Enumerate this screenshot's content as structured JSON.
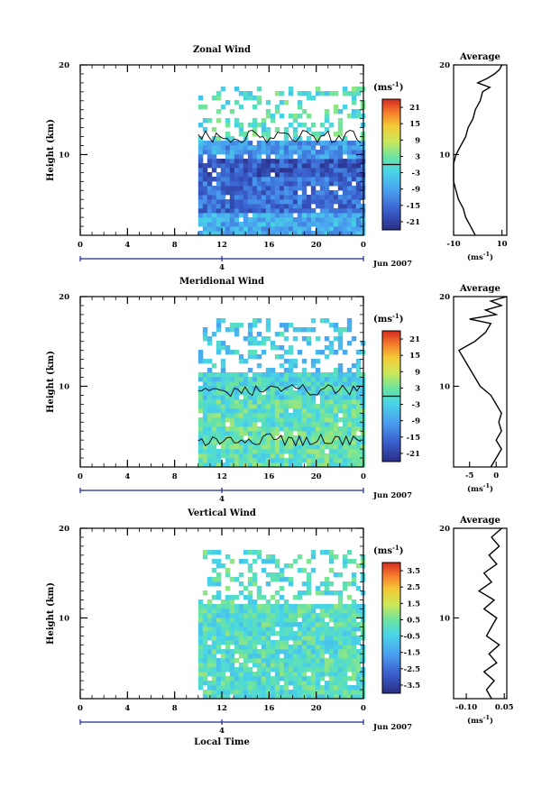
{
  "panels": [
    {
      "id": "zonal",
      "title": "Zonal Wind",
      "ylabel": "Height (km)",
      "y_ticks": [
        "20",
        "10"
      ],
      "x_ticks": [
        "0",
        "4",
        "8",
        "12",
        "16",
        "20",
        "0"
      ],
      "day_marker": "4",
      "date_label": "Jun 2007",
      "colorbar_unit": "(ms",
      "colorbar_exp": "-1",
      "colorbar_ticks": [
        "21",
        "15",
        "9",
        "3",
        "-3",
        "-9",
        "-15",
        "-21"
      ],
      "profile_title": "Average",
      "profile_yticks": [
        "20",
        "10"
      ],
      "profile_xticks": [
        "-10",
        "10"
      ],
      "profile_xlabel": "(ms",
      "profile_xlabel_exp": "-1"
    },
    {
      "id": "meridional",
      "title": "Meridional Wind",
      "ylabel": "Height (km)",
      "y_ticks": [
        "20",
        "10"
      ],
      "x_ticks": [
        "0",
        "4",
        "8",
        "12",
        "16",
        "20",
        "0"
      ],
      "day_marker": "4",
      "date_label": "Jun 2007",
      "colorbar_unit": "(ms",
      "colorbar_exp": "-1",
      "colorbar_ticks": [
        "21",
        "15",
        "9",
        "3",
        "-3",
        "-9",
        "-15",
        "-21"
      ],
      "profile_title": "Average",
      "profile_yticks": [
        "20",
        "10"
      ],
      "profile_xticks": [
        "-5",
        "0"
      ],
      "profile_xlabel": "(ms",
      "profile_xlabel_exp": "-1"
    },
    {
      "id": "vertical",
      "title": "Vertical Wind",
      "ylabel": "Height (km)",
      "y_ticks": [
        "20",
        "10"
      ],
      "x_ticks": [
        "0",
        "4",
        "8",
        "12",
        "16",
        "20",
        "0"
      ],
      "day_marker": "4",
      "date_label": "Jun 2007",
      "xlabel": "Local Time",
      "colorbar_unit": "(ms",
      "colorbar_exp": "-1",
      "colorbar_ticks": [
        "3.5",
        "2.5",
        "1.5",
        "0.5",
        "-0.5",
        "-1.5",
        "-2.5",
        "-3.5"
      ],
      "profile_title": "Average",
      "profile_yticks": [
        "20",
        "10"
      ],
      "profile_xticks": [
        "-0.10",
        "0.05"
      ],
      "profile_xlabel": "(ms",
      "profile_xlabel_exp": "-1"
    }
  ],
  "chart_data": [
    {
      "type": "heatmap",
      "title": "Zonal Wind",
      "xlabel": "",
      "ylabel": "Height (km)",
      "x_range_hours": [
        0,
        24
      ],
      "y_range_km": [
        1,
        20
      ],
      "data_start_hour": 10,
      "colorbar": {
        "unit": "ms-1",
        "range": [
          -24,
          24
        ],
        "zero_contour": true
      },
      "description_values": [
        {
          "height_km": [
            1,
            4
          ],
          "value": -8
        },
        {
          "height_km": [
            4,
            8
          ],
          "value": -15
        },
        {
          "height_km": [
            8,
            10
          ],
          "value": -18
        },
        {
          "height_km": [
            10,
            12
          ],
          "value": -10
        },
        {
          "height_km": [
            12,
            18
          ],
          "value": 0
        }
      ]
    },
    {
      "type": "line",
      "title": "Average",
      "xlabel": "(ms-1)",
      "xlim": [
        -10,
        12
      ],
      "ylim": [
        1,
        20
      ],
      "points": [
        [
          -1,
          1
        ],
        [
          -3,
          2
        ],
        [
          -5,
          3
        ],
        [
          -6,
          4
        ],
        [
          -8,
          5
        ],
        [
          -9,
          6
        ],
        [
          -10,
          7
        ],
        [
          -10,
          8
        ],
        [
          -10,
          9
        ],
        [
          -9,
          10
        ],
        [
          -7,
          11
        ],
        [
          -5,
          12
        ],
        [
          -4,
          13
        ],
        [
          -2,
          14
        ],
        [
          -1,
          15
        ],
        [
          1,
          16
        ],
        [
          2,
          17
        ],
        [
          5,
          17.5
        ],
        [
          0,
          18
        ],
        [
          4,
          18.5
        ],
        [
          7,
          19
        ],
        [
          9,
          19.5
        ],
        [
          10,
          20
        ]
      ]
    },
    {
      "type": "heatmap",
      "title": "Meridional Wind",
      "xlabel": "",
      "ylabel": "Height (km)",
      "x_range_hours": [
        0,
        24
      ],
      "y_range_km": [
        1,
        20
      ],
      "data_start_hour": 10,
      "colorbar": {
        "unit": "ms-1",
        "range": [
          -24,
          24
        ],
        "zero_contour": true
      },
      "description_values": [
        {
          "height_km": [
            1,
            9
          ],
          "value": 1
        },
        {
          "height_km": [
            9,
            12
          ],
          "value": -2
        },
        {
          "height_km": [
            12,
            18
          ],
          "value": -4
        }
      ]
    },
    {
      "type": "line",
      "title": "Average",
      "xlabel": "(ms-1)",
      "xlim": [
        -8,
        2
      ],
      "ylim": [
        1,
        20
      ],
      "points": [
        [
          -1,
          1
        ],
        [
          0,
          2
        ],
        [
          1,
          3
        ],
        [
          0,
          4
        ],
        [
          1,
          5
        ],
        [
          0.5,
          6
        ],
        [
          1,
          7
        ],
        [
          0,
          8
        ],
        [
          -1,
          9
        ],
        [
          -3,
          10
        ],
        [
          -4,
          11
        ],
        [
          -5,
          12
        ],
        [
          -6,
          13
        ],
        [
          -7,
          14
        ],
        [
          -4,
          15
        ],
        [
          -2,
          16
        ],
        [
          -1,
          17
        ],
        [
          -5,
          17.5
        ],
        [
          0,
          18
        ],
        [
          -2,
          18.5
        ],
        [
          1,
          19
        ],
        [
          -1,
          19.5
        ],
        [
          2,
          20
        ]
      ]
    },
    {
      "type": "heatmap",
      "title": "Vertical Wind",
      "xlabel": "Local Time",
      "ylabel": "Height (km)",
      "x_range_hours": [
        0,
        24
      ],
      "y_range_km": [
        1,
        20
      ],
      "data_start_hour": 10,
      "colorbar": {
        "unit": "ms-1",
        "range": [
          -4,
          4
        ],
        "zero_contour": false
      },
      "description_values": [
        {
          "height_km": [
            1,
            20
          ],
          "value": 0
        }
      ]
    },
    {
      "type": "line",
      "title": "Average",
      "xlabel": "(ms-1)",
      "xlim": [
        -0.15,
        0.06
      ],
      "ylim": [
        1,
        20
      ],
      "points": [
        [
          0.0,
          1
        ],
        [
          -0.02,
          2
        ],
        [
          0.01,
          3
        ],
        [
          -0.03,
          4
        ],
        [
          0.02,
          5
        ],
        [
          -0.01,
          6
        ],
        [
          0.03,
          7
        ],
        [
          -0.02,
          8
        ],
        [
          0.0,
          9
        ],
        [
          0.02,
          10
        ],
        [
          -0.03,
          11
        ],
        [
          0.01,
          12
        ],
        [
          -0.05,
          13
        ],
        [
          0.0,
          14
        ],
        [
          -0.03,
          15
        ],
        [
          0.02,
          16
        ],
        [
          -0.01,
          17
        ],
        [
          0.03,
          18
        ],
        [
          0.0,
          19
        ],
        [
          0.04,
          20
        ]
      ]
    }
  ]
}
